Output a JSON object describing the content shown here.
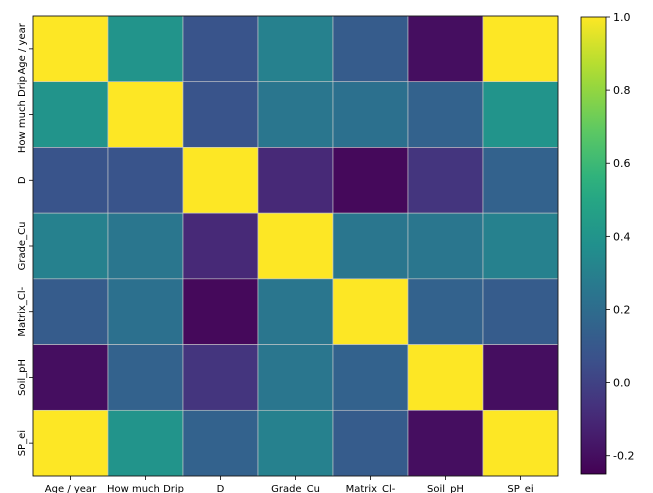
{
  "chart_data": {
    "type": "heatmap",
    "title": "",
    "xlabel": "",
    "ylabel": "",
    "x_categories": [
      "Age / year",
      "How much Drip",
      "D",
      "Grade_Cu",
      "Matrix_Cl-",
      "Soil_pH",
      "SP_ei"
    ],
    "y_categories": [
      "Age / year",
      "How much Drip",
      "D",
      "Grade_Cu",
      "Matrix_Cl-",
      "Soil_pH",
      "SP_ei"
    ],
    "values": [
      [
        1.0,
        0.4,
        0.08,
        0.3,
        0.12,
        -0.2,
        1.0
      ],
      [
        0.4,
        1.0,
        0.08,
        0.25,
        0.22,
        0.15,
        0.4
      ],
      [
        0.08,
        0.08,
        1.0,
        -0.1,
        -0.22,
        -0.05,
        0.15
      ],
      [
        0.3,
        0.25,
        -0.1,
        1.0,
        0.25,
        0.25,
        0.3
      ],
      [
        0.12,
        0.22,
        -0.22,
        0.25,
        1.0,
        0.15,
        0.12
      ],
      [
        -0.2,
        0.15,
        -0.05,
        0.25,
        0.15,
        1.0,
        -0.2
      ],
      [
        1.0,
        0.4,
        0.15,
        0.3,
        0.12,
        -0.2,
        1.0
      ]
    ],
    "colormap": "viridis",
    "vmin": -0.25,
    "vmax": 1.0,
    "colorbar": {
      "ticks": [
        -0.2,
        0.0,
        0.2,
        0.4,
        0.6,
        0.8,
        1.0
      ],
      "tick_labels": [
        "-0.2",
        "0.0",
        "0.2",
        "0.4",
        "0.6",
        "0.8",
        "1.0"
      ]
    },
    "annotations": false,
    "grid": false,
    "cell_border_color": "#cccccc"
  }
}
